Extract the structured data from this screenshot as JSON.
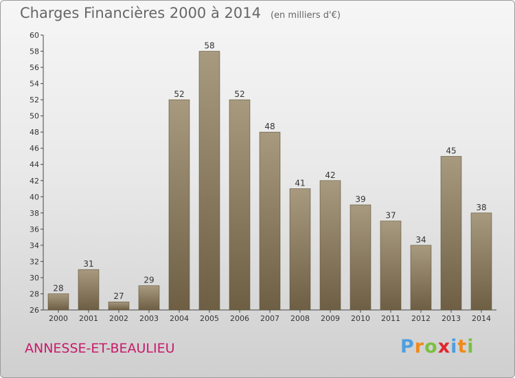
{
  "header": {
    "title": "Charges Financières 2000 à 2014",
    "subtitle": "(en milliers d'€)"
  },
  "footer": {
    "commune": "ANNESSE-ET-BEAULIEU",
    "logo": "Proxiti"
  },
  "colors": {
    "bar_top": "#a89a7e",
    "bar_bottom": "#6e5f44",
    "text": "#666666",
    "commune": "#c8196a",
    "logo": [
      "#4f9fe0",
      "#f08a1c",
      "#7cc043",
      "#e0262b",
      "#4f9fe0",
      "#f08a1c",
      "#7cc043"
    ]
  },
  "chart_data": {
    "type": "bar",
    "categories": [
      "2000",
      "2001",
      "2002",
      "2003",
      "2004",
      "2005",
      "2006",
      "2007",
      "2008",
      "2009",
      "2010",
      "2011",
      "2012",
      "2013",
      "2014"
    ],
    "values": [
      28,
      31,
      27,
      29,
      52,
      58,
      52,
      48,
      41,
      42,
      39,
      37,
      34,
      45,
      38
    ],
    "title": "Charges Financières 2000 à 2014",
    "subtitle": "(en milliers d'€)",
    "xlabel": "",
    "ylabel": "",
    "ylim": [
      26,
      60
    ],
    "yticks": [
      26,
      28,
      30,
      32,
      34,
      36,
      38,
      40,
      42,
      44,
      46,
      48,
      50,
      52,
      54,
      56,
      58,
      60
    ],
    "grid": false,
    "data_labels": true
  }
}
